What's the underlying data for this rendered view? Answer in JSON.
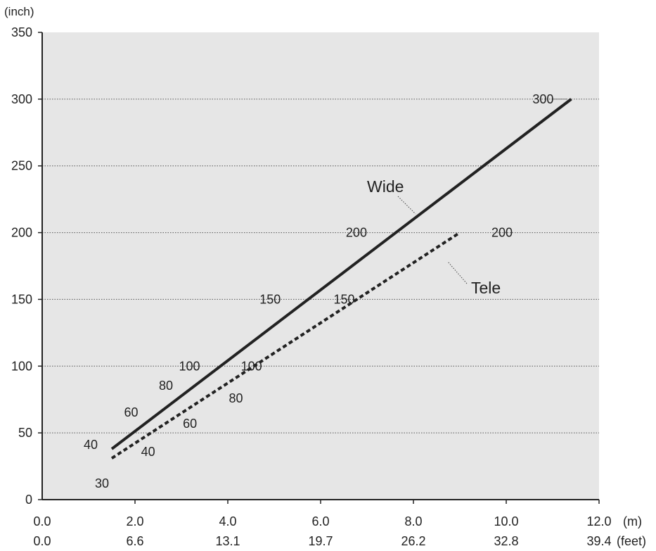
{
  "chart_data": {
    "type": "line",
    "y_unit": "(inch)",
    "x_unit": "(m)",
    "x2_unit": "(feet)",
    "xlim": [
      0,
      12
    ],
    "ylim": [
      0,
      350
    ],
    "x_ticks": [
      "0.0",
      "2.0",
      "4.0",
      "6.0",
      "8.0",
      "10.0",
      "12.0"
    ],
    "x_ticks_feet": [
      "0.0",
      "6.6",
      "13.1",
      "19.7",
      "26.2",
      "32.8",
      "39.4"
    ],
    "y_ticks": [
      "0",
      "50",
      "100",
      "150",
      "200",
      "250",
      "300",
      "350"
    ],
    "grid": "horizontal-dotted",
    "series": [
      {
        "name": "Wide",
        "style": "solid",
        "color": "#222222",
        "x": [
          1.5,
          11.4
        ],
        "y": [
          38,
          300
        ],
        "point_labels": [
          {
            "text": "40",
            "x": 1.5,
            "y": 40
          },
          {
            "text": "60",
            "x": 2.25,
            "y": 60
          },
          {
            "text": "80",
            "x": 3.0,
            "y": 80
          },
          {
            "text": "100",
            "x": 3.78,
            "y": 100
          },
          {
            "text": "150",
            "x": 5.67,
            "y": 150
          },
          {
            "text": "200",
            "x": 7.56,
            "y": 200
          },
          {
            "text": "300",
            "x": 11.4,
            "y": 300
          }
        ]
      },
      {
        "name": "Tele",
        "style": "dotted",
        "color": "#222222",
        "x": [
          1.5,
          9.0
        ],
        "y": [
          31,
          200
        ],
        "point_labels": [
          {
            "text": "30",
            "x": 1.5,
            "y": 30
          },
          {
            "text": "40",
            "x": 1.95,
            "y": 40
          },
          {
            "text": "60",
            "x": 2.85,
            "y": 60
          },
          {
            "text": "80",
            "x": 3.75,
            "y": 80
          },
          {
            "text": "100",
            "x": 4.6,
            "y": 100
          },
          {
            "text": "150",
            "x": 6.75,
            "y": 150
          },
          {
            "text": "200",
            "x": 9.0,
            "y": 200
          }
        ]
      }
    ]
  }
}
